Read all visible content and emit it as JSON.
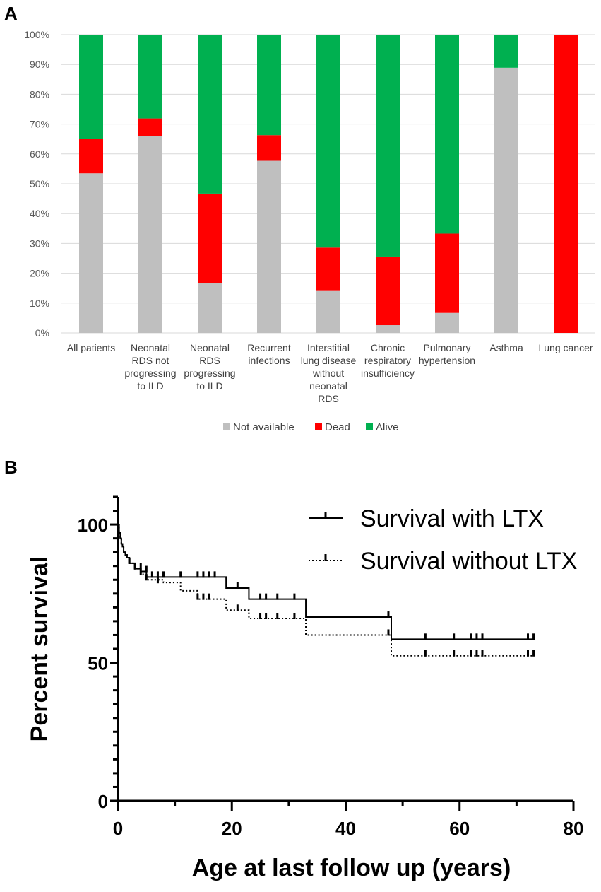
{
  "chart_data": [
    {
      "panel_label": "A",
      "type": "bar",
      "stacked": true,
      "categories": [
        [
          "All patients"
        ],
        [
          "Neonatal",
          "RDS not",
          "progressing",
          "to ILD"
        ],
        [
          "Neonatal",
          "RDS",
          "progressing",
          "to ILD"
        ],
        [
          "Recurrent",
          "infections"
        ],
        [
          "Interstitial",
          "lung disease",
          "without",
          "neonatal",
          "RDS"
        ],
        [
          "Chronic",
          "respiratory",
          "insufficiency"
        ],
        [
          "Pulmonary",
          "hypertension"
        ],
        [
          "Asthma"
        ],
        [
          "Lung cancer"
        ]
      ],
      "series": [
        {
          "name": "Not available",
          "color": "#bfbfbf",
          "values": [
            53.5,
            66,
            16.7,
            57.7,
            14.3,
            2.6,
            6.7,
            88.9,
            0
          ]
        },
        {
          "name": "Dead",
          "color": "#ff0000",
          "values": [
            11.5,
            5.9,
            30,
            8.6,
            14.3,
            23,
            26.6,
            0,
            100
          ]
        },
        {
          "name": "Alive",
          "color": "#00b050",
          "values": [
            35,
            28.1,
            53.3,
            33.7,
            71.4,
            74.4,
            66.7,
            11.1,
            0
          ]
        }
      ],
      "yticks": [
        "0%",
        "10%",
        "20%",
        "30%",
        "40%",
        "50%",
        "60%",
        "70%",
        "80%",
        "90%",
        "100%"
      ],
      "ylim": [
        0,
        100
      ],
      "legend_position": "bottom",
      "grid": true
    },
    {
      "panel_label": "B",
      "type": "line",
      "xlabel": "Age at last follow up (years)",
      "ylabel": "Percent survival",
      "xlim": [
        0,
        80
      ],
      "ylim": [
        0,
        110
      ],
      "xticks": [
        "0",
        "20",
        "40",
        "60",
        "80"
      ],
      "yticks": [
        "0",
        "50",
        "100"
      ],
      "xtick_values": [
        0,
        20,
        40,
        60,
        80
      ],
      "ytick_values": [
        0,
        50,
        100
      ],
      "legend_position": "top-right",
      "series": [
        {
          "name": "Survival with LTX",
          "style": "solid",
          "x": [
            0,
            0.2,
            0.4,
            0.6,
            0.8,
            1,
            1.3,
            1.6,
            2,
            3,
            4,
            5,
            7,
            10,
            19,
            23,
            33,
            48,
            73
          ],
          "y": [
            100,
            97,
            95,
            93,
            92,
            90,
            89,
            88,
            86,
            84,
            83,
            81,
            81,
            81,
            77,
            73,
            66.5,
            58.5,
            58.5
          ],
          "censor_x": [
            2,
            3,
            4,
            5,
            6,
            7,
            8,
            11,
            14,
            15,
            16,
            17,
            21,
            25,
            26,
            28,
            31,
            47.5,
            54,
            59,
            62,
            63,
            64,
            72,
            73
          ],
          "censor_y": [
            86,
            84,
            84,
            83,
            81,
            81,
            81,
            81,
            81,
            81,
            81,
            81,
            77,
            73,
            73,
            73,
            73,
            66.5,
            58.5,
            58.5,
            58.5,
            58.5,
            58.5,
            58.5,
            58.5
          ]
        },
        {
          "name": "Survival without LTX",
          "style": "dotted",
          "x": [
            0,
            0.2,
            0.4,
            0.6,
            0.8,
            1,
            1.3,
            1.6,
            2,
            3,
            4,
            5,
            8,
            11,
            14,
            19,
            23,
            33,
            48,
            73
          ],
          "y": [
            100,
            97,
            95,
            93,
            92,
            90,
            89,
            88,
            86,
            84,
            82,
            80,
            79,
            76,
            73,
            69,
            66,
            60,
            52.5,
            52.5
          ],
          "censor_x": [
            2,
            3,
            4,
            5,
            7,
            14,
            15,
            16,
            21,
            25,
            26,
            28,
            31,
            47.5,
            54,
            59,
            62,
            63,
            64,
            72,
            73
          ],
          "censor_y": [
            86,
            84,
            82,
            80,
            79,
            73,
            73,
            73,
            69,
            66,
            66,
            66,
            66,
            60,
            52.5,
            52.5,
            52.5,
            52.5,
            52.5,
            52.5,
            52.5
          ]
        }
      ]
    }
  ]
}
